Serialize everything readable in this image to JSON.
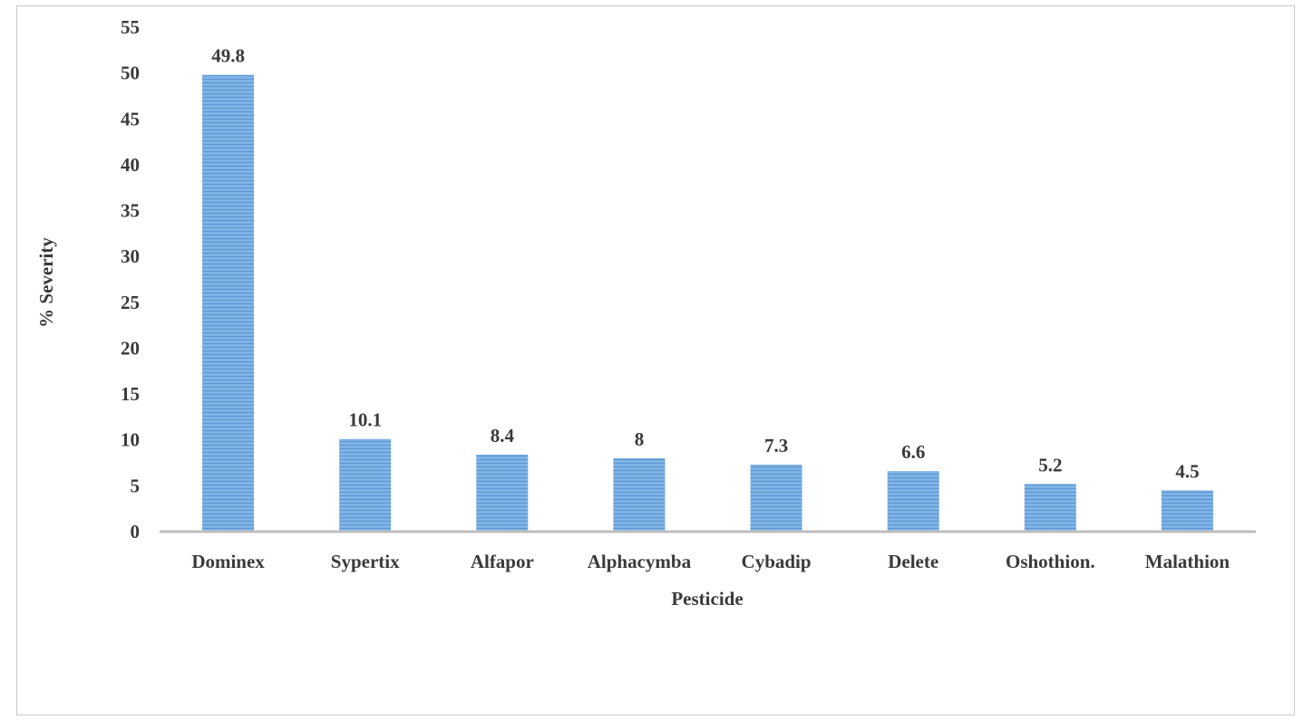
{
  "chart_data": {
    "type": "bar",
    "categories": [
      "Dominex",
      "Sypertix",
      "Alfapor",
      "Alphacymba",
      "Cybadip",
      "Delete",
      "Oshothion.",
      "Malathion"
    ],
    "values": [
      49.8,
      10.1,
      8.4,
      8,
      7.3,
      6.6,
      5.2,
      4.5
    ],
    "value_labels": [
      "49.8",
      "10.1",
      "8.4",
      "8",
      "7.3",
      "6.6",
      "5.2",
      "4.5"
    ],
    "xlabel": "Pesticide",
    "ylabel": "% Severity",
    "ylim": [
      0,
      55
    ],
    "yticks": [
      0,
      5,
      10,
      15,
      20,
      25,
      30,
      35,
      40,
      45,
      50,
      55
    ],
    "grid": false,
    "legend": "none",
    "colors": {
      "bar_fill": "#7fb3e6",
      "bar_stripe": "#5b95d0",
      "axis": "#bfbfbf",
      "text": "#3a3a3a"
    }
  }
}
